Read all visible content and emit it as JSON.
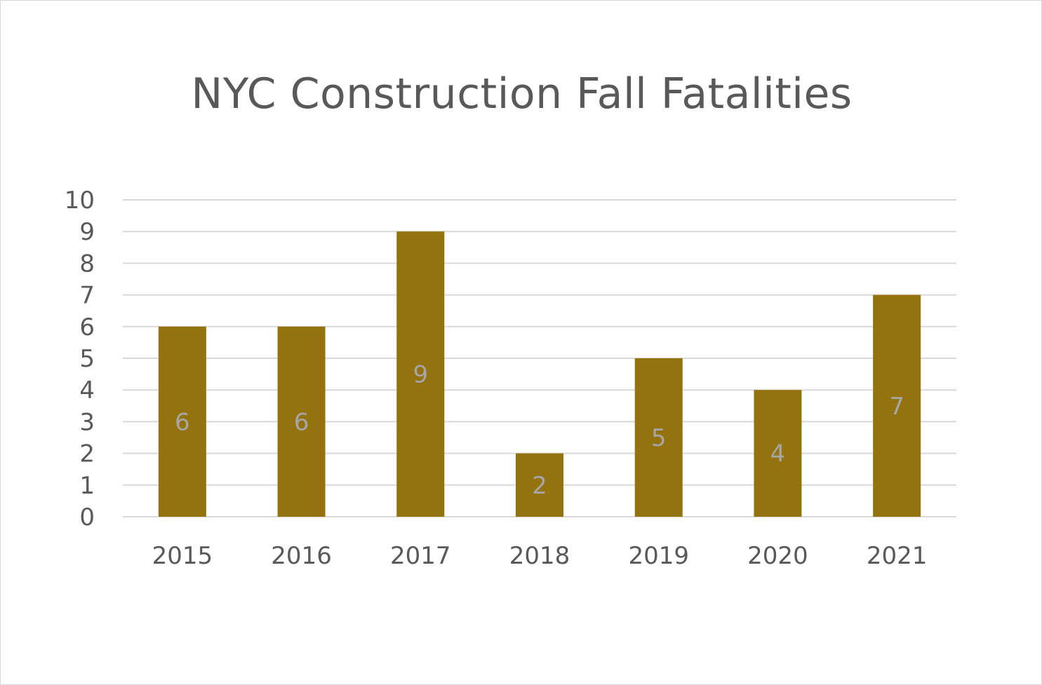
{
  "chart_data": {
    "type": "bar",
    "title": "NYC Construction Fall Fatalities",
    "categories": [
      "2015",
      "2016",
      "2017",
      "2018",
      "2019",
      "2020",
      "2021"
    ],
    "values": [
      6,
      6,
      9,
      2,
      5,
      4,
      7
    ],
    "xlabel": "",
    "ylabel": "",
    "ylim": [
      0,
      10
    ],
    "yticks": [
      0,
      1,
      2,
      3,
      4,
      5,
      6,
      7,
      8,
      9,
      10
    ],
    "grid": true,
    "legend": "none",
    "data_labels": true,
    "bar_color": "#94730f",
    "grid_color": "#d9d9d9",
    "text_color": "#595959",
    "data_label_color": "#a6a6a6"
  }
}
